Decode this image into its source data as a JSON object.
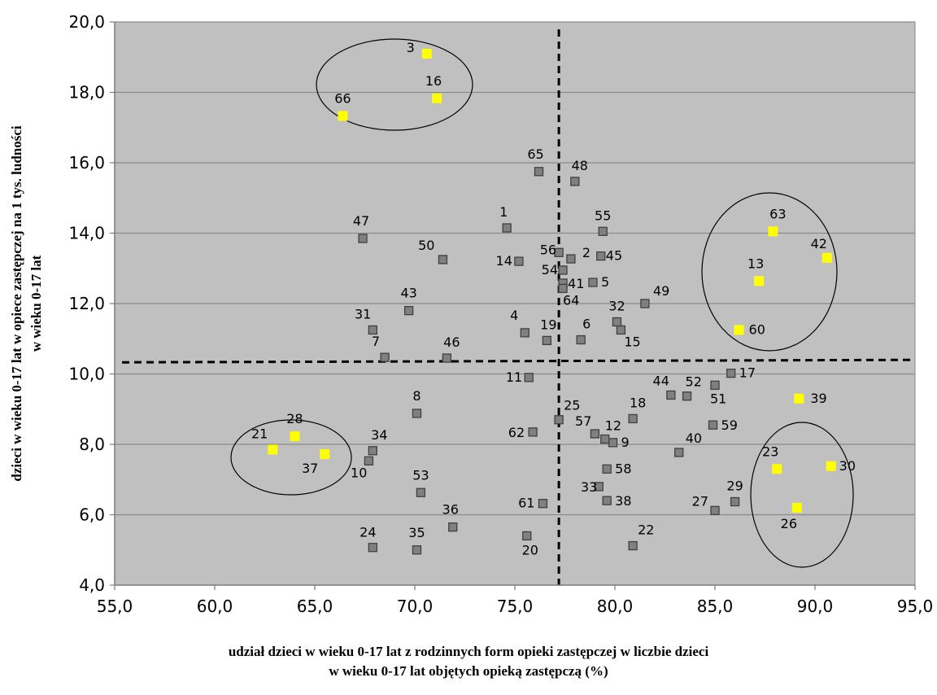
{
  "chart_data": {
    "type": "scatter",
    "xlabel_lines": [
      "udział dzieci w wieku 0-17 lat z rodzinnych form opieki zastępczej w liczbie dzieci",
      "w wieku 0-17  lat objętych opieką zastępczą (%)"
    ],
    "ylabel_lines": [
      "dzieci w wieku 0-17 lat w opiece zastępczej na 1 tys. ludności",
      "w wieku 0-17 lat"
    ],
    "xlim": [
      55,
      95
    ],
    "ylim": [
      4,
      20
    ],
    "x_ticks": [
      "55,0",
      "60,0",
      "65,0",
      "70,0",
      "75,0",
      "80,0",
      "85,0",
      "90,0",
      "95,0"
    ],
    "y_ticks": [
      "4,0",
      "6,0",
      "8,0",
      "10,0",
      "12,0",
      "14,0",
      "16,0",
      "18,0",
      "20,0"
    ],
    "x_tick_values": [
      55,
      60,
      65,
      70,
      75,
      80,
      85,
      90,
      95
    ],
    "y_tick_values": [
      4,
      6,
      8,
      10,
      12,
      14,
      16,
      18,
      20
    ],
    "grid": "horizontal",
    "plot_background": "#c0c0c0",
    "colors": {
      "gray_marker": "#808080",
      "yellow_marker": "#ffff00"
    },
    "reference_lines": {
      "vertical_x": 77.2,
      "horizontal_y": 10.33
    },
    "points": [
      {
        "label": "1",
        "x": 74.6,
        "y": 14.15,
        "c": "gray"
      },
      {
        "label": "2",
        "x": 77.8,
        "y": 13.27,
        "c": "gray"
      },
      {
        "label": "3",
        "x": 70.6,
        "y": 19.1,
        "c": "yellow"
      },
      {
        "label": "4",
        "x": 75.5,
        "y": 11.17,
        "c": "gray"
      },
      {
        "label": "5",
        "x": 78.9,
        "y": 12.6,
        "c": "gray"
      },
      {
        "label": "6",
        "x": 78.3,
        "y": 10.97,
        "c": "gray"
      },
      {
        "label": "7",
        "x": 68.5,
        "y": 10.47,
        "c": "gray"
      },
      {
        "label": "8",
        "x": 70.1,
        "y": 8.88,
        "c": "gray"
      },
      {
        "label": "9",
        "x": 79.9,
        "y": 8.05,
        "c": "gray"
      },
      {
        "label": "10",
        "x": 67.7,
        "y": 7.53,
        "c": "gray"
      },
      {
        "label": "11",
        "x": 75.7,
        "y": 9.9,
        "c": "gray"
      },
      {
        "label": "12",
        "x": 79.5,
        "y": 8.15,
        "c": "gray"
      },
      {
        "label": "13",
        "x": 87.2,
        "y": 12.64,
        "c": "yellow"
      },
      {
        "label": "14",
        "x": 75.2,
        "y": 13.2,
        "c": "gray"
      },
      {
        "label": "15",
        "x": 80.3,
        "y": 11.25,
        "c": "gray"
      },
      {
        "label": "16",
        "x": 71.1,
        "y": 17.83,
        "c": "yellow"
      },
      {
        "label": "17",
        "x": 85.8,
        "y": 10.02,
        "c": "gray"
      },
      {
        "label": "18",
        "x": 80.9,
        "y": 8.73,
        "c": "gray"
      },
      {
        "label": "19",
        "x": 76.6,
        "y": 10.95,
        "c": "gray"
      },
      {
        "label": "20",
        "x": 75.6,
        "y": 5.4,
        "c": "gray"
      },
      {
        "label": "21",
        "x": 62.9,
        "y": 7.85,
        "c": "yellow"
      },
      {
        "label": "22",
        "x": 80.9,
        "y": 5.12,
        "c": "gray"
      },
      {
        "label": "23",
        "x": 88.1,
        "y": 7.3,
        "c": "yellow"
      },
      {
        "label": "24",
        "x": 67.9,
        "y": 5.07,
        "c": "gray"
      },
      {
        "label": "25",
        "x": 77.2,
        "y": 8.7,
        "c": "gray"
      },
      {
        "label": "26",
        "x": 89.1,
        "y": 6.2,
        "c": "yellow"
      },
      {
        "label": "27",
        "x": 85.0,
        "y": 6.12,
        "c": "gray"
      },
      {
        "label": "28",
        "x": 64.0,
        "y": 8.23,
        "c": "yellow"
      },
      {
        "label": "29",
        "x": 86.0,
        "y": 6.37,
        "c": "gray"
      },
      {
        "label": "30",
        "x": 90.8,
        "y": 7.38,
        "c": "yellow"
      },
      {
        "label": "31",
        "x": 67.9,
        "y": 11.25,
        "c": "gray"
      },
      {
        "label": "32",
        "x": 80.1,
        "y": 11.48,
        "c": "gray"
      },
      {
        "label": "33",
        "x": 79.2,
        "y": 6.8,
        "c": "gray"
      },
      {
        "label": "34",
        "x": 67.9,
        "y": 7.82,
        "c": "gray"
      },
      {
        "label": "35",
        "x": 70.1,
        "y": 5.0,
        "c": "gray"
      },
      {
        "label": "36",
        "x": 71.9,
        "y": 5.65,
        "c": "gray"
      },
      {
        "label": "37",
        "x": 65.5,
        "y": 7.72,
        "c": "yellow"
      },
      {
        "label": "38",
        "x": 79.6,
        "y": 6.4,
        "c": "gray"
      },
      {
        "label": "39",
        "x": 89.2,
        "y": 9.3,
        "c": "yellow"
      },
      {
        "label": "40",
        "x": 83.2,
        "y": 7.77,
        "c": "gray"
      },
      {
        "label": "41",
        "x": 77.4,
        "y": 12.58,
        "c": "gray"
      },
      {
        "label": "42",
        "x": 90.6,
        "y": 13.3,
        "c": "yellow"
      },
      {
        "label": "43",
        "x": 69.7,
        "y": 11.8,
        "c": "gray"
      },
      {
        "label": "44",
        "x": 82.8,
        "y": 9.4,
        "c": "gray"
      },
      {
        "label": "45",
        "x": 79.3,
        "y": 13.35,
        "c": "gray"
      },
      {
        "label": "46",
        "x": 71.6,
        "y": 10.45,
        "c": "gray"
      },
      {
        "label": "47",
        "x": 67.4,
        "y": 13.85,
        "c": "gray"
      },
      {
        "label": "48",
        "x": 78.0,
        "y": 15.47,
        "c": "gray"
      },
      {
        "label": "49",
        "x": 81.5,
        "y": 12.0,
        "c": "gray"
      },
      {
        "label": "50",
        "x": 71.4,
        "y": 13.25,
        "c": "gray"
      },
      {
        "label": "51",
        "x": 85.0,
        "y": 9.68,
        "c": "gray"
      },
      {
        "label": "52",
        "x": 83.6,
        "y": 9.37,
        "c": "gray"
      },
      {
        "label": "53",
        "x": 70.3,
        "y": 6.63,
        "c": "gray"
      },
      {
        "label": "54",
        "x": 77.4,
        "y": 12.95,
        "c": "gray"
      },
      {
        "label": "55",
        "x": 79.4,
        "y": 14.05,
        "c": "gray"
      },
      {
        "label": "56",
        "x": 77.2,
        "y": 13.45,
        "c": "gray"
      },
      {
        "label": "57",
        "x": 79.0,
        "y": 8.3,
        "c": "gray"
      },
      {
        "label": "58",
        "x": 79.6,
        "y": 7.3,
        "c": "gray"
      },
      {
        "label": "59",
        "x": 84.9,
        "y": 8.55,
        "c": "gray"
      },
      {
        "label": "60",
        "x": 86.2,
        "y": 11.25,
        "c": "yellow"
      },
      {
        "label": "61",
        "x": 76.4,
        "y": 6.32,
        "c": "gray"
      },
      {
        "label": "62",
        "x": 75.9,
        "y": 8.35,
        "c": "gray"
      },
      {
        "label": "63",
        "x": 87.9,
        "y": 14.05,
        "c": "yellow"
      },
      {
        "label": "64",
        "x": 77.4,
        "y": 12.43,
        "c": "gray"
      },
      {
        "label": "65",
        "x": 76.2,
        "y": 15.75,
        "c": "gray"
      },
      {
        "label": "66",
        "x": 66.4,
        "y": 17.33,
        "c": "yellow"
      }
    ]
  }
}
